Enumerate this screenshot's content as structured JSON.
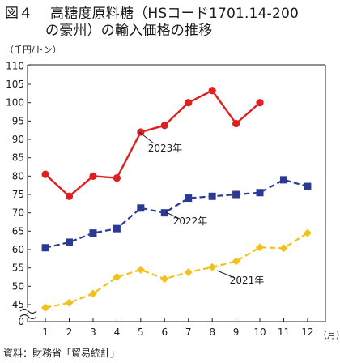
{
  "header": {
    "figure_label": "図４",
    "title_line1": "高糖度原料糖（HSコード1701.14-200",
    "title_line2": "の豪州）の輸入価格の推移"
  },
  "source": "資料：財務省「貿易統計」",
  "chart_data": {
    "type": "line",
    "title": "高糖度原料糖（HSコード1701.14-200の豪州）の輸入価格の推移",
    "ylabel": "（千円/トン）",
    "xlabel": "（月）",
    "categories": [
      "1",
      "2",
      "3",
      "4",
      "5",
      "6",
      "7",
      "8",
      "9",
      "10",
      "11",
      "12"
    ],
    "y_ticks": [
      "0",
      "45",
      "50",
      "55",
      "60",
      "65",
      "70",
      "75",
      "80",
      "85",
      "90",
      "95",
      "100",
      "105",
      "110"
    ],
    "ylim": [
      42,
      110
    ],
    "axis_break": "between 0 and 45",
    "grid": false,
    "series": [
      {
        "name": "2023年",
        "color": "#e02020",
        "marker": "circle",
        "line": "solid",
        "values": [
          80.5,
          74.5,
          80,
          79.5,
          92,
          93.8,
          100,
          103.3,
          94.3,
          100,
          null,
          null
        ]
      },
      {
        "name": "2022年",
        "color": "#2a3a93",
        "marker": "square",
        "line": "dashed",
        "values": [
          60.5,
          62,
          64.5,
          65.7,
          71.3,
          70,
          74,
          74.5,
          75,
          75.5,
          79,
          77.2
        ]
      },
      {
        "name": "2021年",
        "color": "#f2c21a",
        "marker": "diamond",
        "line": "dashed",
        "values": [
          44.2,
          45.5,
          48,
          52.5,
          54.5,
          52,
          53.8,
          55.2,
          56.8,
          60.6,
          60.4,
          64.5
        ]
      }
    ]
  }
}
